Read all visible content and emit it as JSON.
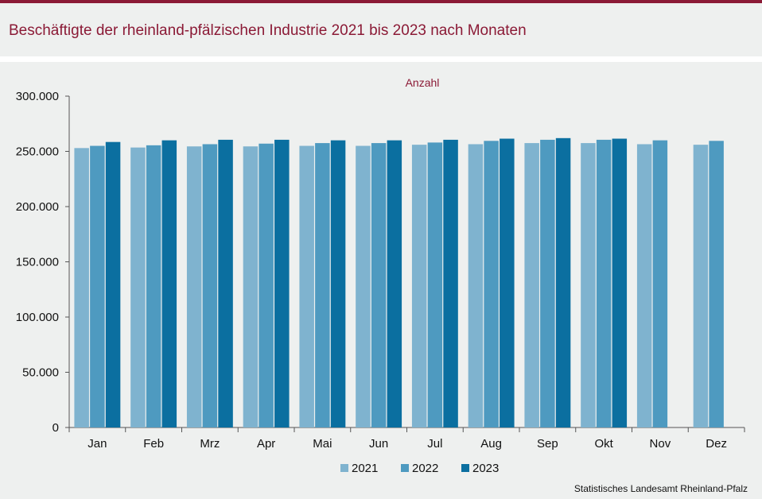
{
  "header": {
    "title": "Beschäftigte der rheinland-pfälzischen Industrie 2021 bis 2023 nach Monaten"
  },
  "footer": {
    "source": "Statistisches Landesamt Rheinland-Pfalz"
  },
  "colors": {
    "accent": "#8b1a36",
    "background": "#eef0ef",
    "series": [
      "#7fb3cf",
      "#4e9ac0",
      "#0b6fa0"
    ]
  },
  "chart_data": {
    "type": "bar",
    "unit_label": "Anzahl",
    "categories": [
      "Jan",
      "Feb",
      "Mrz",
      "Apr",
      "Mai",
      "Jun",
      "Jul",
      "Aug",
      "Sep",
      "Okt",
      "Nov",
      "Dez"
    ],
    "series": [
      {
        "name": "2021",
        "values": [
          253000,
          253500,
          254500,
          254500,
          255000,
          255000,
          256000,
          256500,
          257500,
          257500,
          256500,
          256000
        ]
      },
      {
        "name": "2022",
        "values": [
          255000,
          255500,
          256500,
          257000,
          257500,
          257500,
          258000,
          259500,
          260500,
          260500,
          260000,
          259500
        ]
      },
      {
        "name": "2023",
        "values": [
          258500,
          260000,
          260500,
          260500,
          260000,
          260000,
          260500,
          261500,
          262000,
          261500,
          null,
          null
        ]
      }
    ],
    "ylim": [
      0,
      300000
    ],
    "yticks": [
      0,
      50000,
      100000,
      150000,
      200000,
      250000,
      300000
    ],
    "ytick_labels": [
      "0",
      "50.000",
      "100.000",
      "150.000",
      "200.000",
      "250.000",
      "300.000"
    ],
    "grid": false,
    "legend_position": "bottom-center"
  }
}
